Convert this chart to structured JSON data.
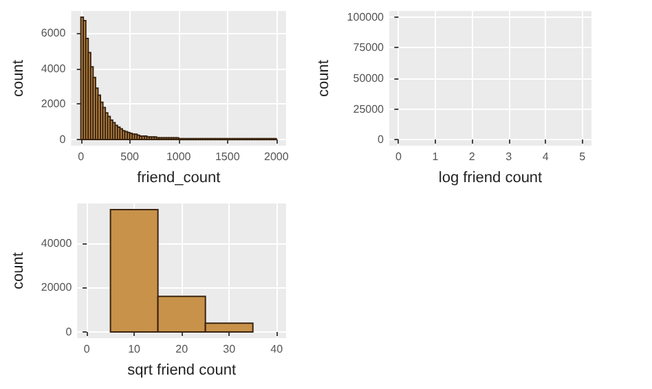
{
  "chart_data": [
    {
      "type": "histogram",
      "xlabel": "friend_count",
      "ylabel": "count",
      "color": "#c8924a",
      "bins": [
        0,
        25,
        50,
        75,
        100,
        125,
        150,
        175,
        200,
        225,
        250,
        275,
        300,
        325,
        350,
        375,
        400,
        425,
        450,
        475,
        500,
        525,
        550,
        575,
        600,
        625,
        650,
        675,
        700,
        725,
        750,
        775,
        800,
        825,
        850,
        875,
        900,
        925,
        950,
        975,
        1000,
        1025,
        1050,
        1075,
        1100,
        1125,
        1150,
        1175,
        1200,
        1225,
        1250,
        1275,
        1300,
        1325,
        1350,
        1375,
        1400,
        1425,
        1450,
        1475,
        1500,
        1525,
        1550,
        1575,
        1600,
        1625,
        1650,
        1675,
        1700,
        1725,
        1750,
        1775,
        1800,
        1825,
        1850,
        1875,
        1900,
        1925,
        1950,
        1975,
        2000
      ],
      "values": [
        6900,
        6700,
        5700,
        4900,
        4100,
        3500,
        2900,
        2500,
        2100,
        1800,
        1500,
        1300,
        1100,
        950,
        800,
        700,
        600,
        500,
        450,
        400,
        350,
        300,
        300,
        250,
        200,
        200,
        200,
        150,
        150,
        150,
        150,
        100,
        100,
        100,
        100,
        100,
        100,
        100,
        100,
        100,
        50,
        50,
        50,
        50,
        50,
        50,
        50,
        50,
        50,
        50,
        50,
        50,
        50,
        50,
        50,
        50,
        50,
        50,
        50,
        50,
        50,
        50,
        50,
        50,
        50,
        50,
        50,
        50,
        50,
        50,
        50,
        50,
        50,
        50,
        50,
        50,
        50,
        50,
        50,
        50
      ],
      "xlim": [
        -100,
        2100
      ],
      "xticks": [
        0,
        500,
        1000,
        1500,
        2000
      ],
      "ylim": [
        -345,
        7245
      ],
      "yticks": [
        0,
        2000,
        4000,
        6000
      ],
      "grid": true
    },
    {
      "type": "histogram",
      "xlabel": "log friend count",
      "ylabel": "count",
      "xlim": [
        -0.25,
        5.25
      ],
      "xticks": [
        0,
        1,
        2,
        3,
        4,
        5
      ],
      "ylim": [
        -5000,
        105000
      ],
      "yticks": [
        0,
        25000,
        50000,
        75000,
        100000
      ],
      "grid": true
    },
    {
      "type": "histogram",
      "xlabel": "sqrt friend count",
      "ylabel": "count",
      "color": "#c8924a",
      "bins": [
        5,
        15,
        25,
        35
      ],
      "values": [
        55000,
        16000,
        4000
      ],
      "xlim": [
        -2,
        42
      ],
      "xticks": [
        0,
        10,
        20,
        30,
        40
      ],
      "ylim": [
        -2750,
        57750
      ],
      "yticks": [
        0,
        20000,
        40000
      ],
      "grid": true
    }
  ]
}
